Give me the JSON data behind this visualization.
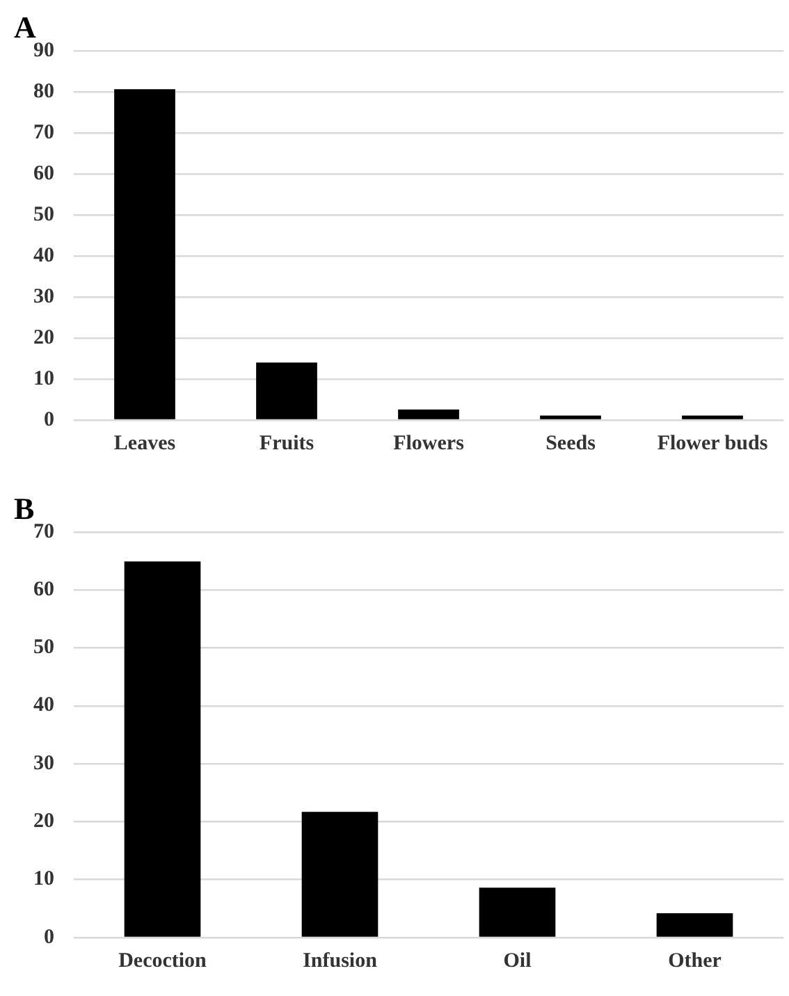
{
  "chart_data": [
    {
      "type": "bar",
      "title": "A",
      "categories": [
        "Leaves",
        "Fruits",
        "Flowers",
        "Seeds",
        "Flower buds"
      ],
      "values": [
        80.6,
        14.0,
        2.6,
        1.1,
        1.1
      ],
      "color": "#000000",
      "ylim": [
        0,
        90
      ],
      "yticks": [
        0,
        10,
        20,
        30,
        40,
        50,
        60,
        70,
        80,
        90
      ],
      "grid": "y",
      "legend": false
    },
    {
      "type": "bar",
      "title": "B",
      "categories": [
        "Decoction",
        "Infusion",
        "Oil",
        "Other"
      ],
      "values": [
        64.9,
        21.7,
        8.6,
        4.2
      ],
      "color": "#000000",
      "ylim": [
        0,
        70
      ],
      "yticks": [
        0,
        10,
        20,
        30,
        40,
        50,
        60,
        70
      ],
      "grid": "y",
      "legend": false
    }
  ]
}
